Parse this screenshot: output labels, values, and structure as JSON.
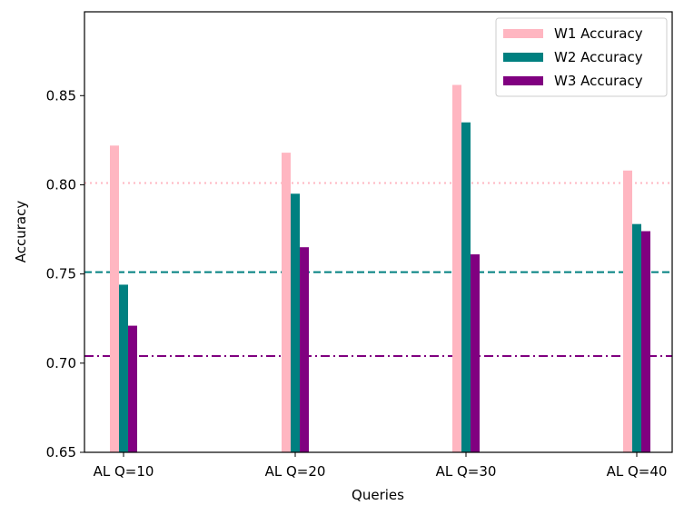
{
  "chart_data": {
    "type": "bar",
    "categories": [
      "AL Q=10",
      "AL Q=20",
      "AL Q=30",
      "AL Q=40"
    ],
    "series": [
      {
        "name": "W1 Accuracy",
        "color": "#ffb6c1",
        "values": [
          0.822,
          0.818,
          0.856,
          0.808
        ]
      },
      {
        "name": "W2 Accuracy",
        "color": "#008080",
        "values": [
          0.744,
          0.795,
          0.835,
          0.778
        ]
      },
      {
        "name": "W3 Accuracy",
        "color": "#800080",
        "values": [
          0.721,
          0.765,
          0.761,
          0.774
        ]
      }
    ],
    "reference_lines": [
      {
        "y": 0.801,
        "color": "#ffb6c1",
        "style": "dotted"
      },
      {
        "y": 0.751,
        "color": "#008080",
        "style": "dashed"
      },
      {
        "y": 0.704,
        "color": "#800080",
        "style": "dashdot"
      }
    ],
    "xlabel": "Queries",
    "ylabel": "Accuracy",
    "ylim": [
      0.65,
      0.897
    ],
    "yticks": [
      0.65,
      0.7,
      0.75,
      0.8,
      0.85
    ],
    "ytick_labels": [
      "0.65",
      "0.70",
      "0.75",
      "0.80",
      "0.85"
    ],
    "grid": false,
    "legend_position": "top-right"
  }
}
